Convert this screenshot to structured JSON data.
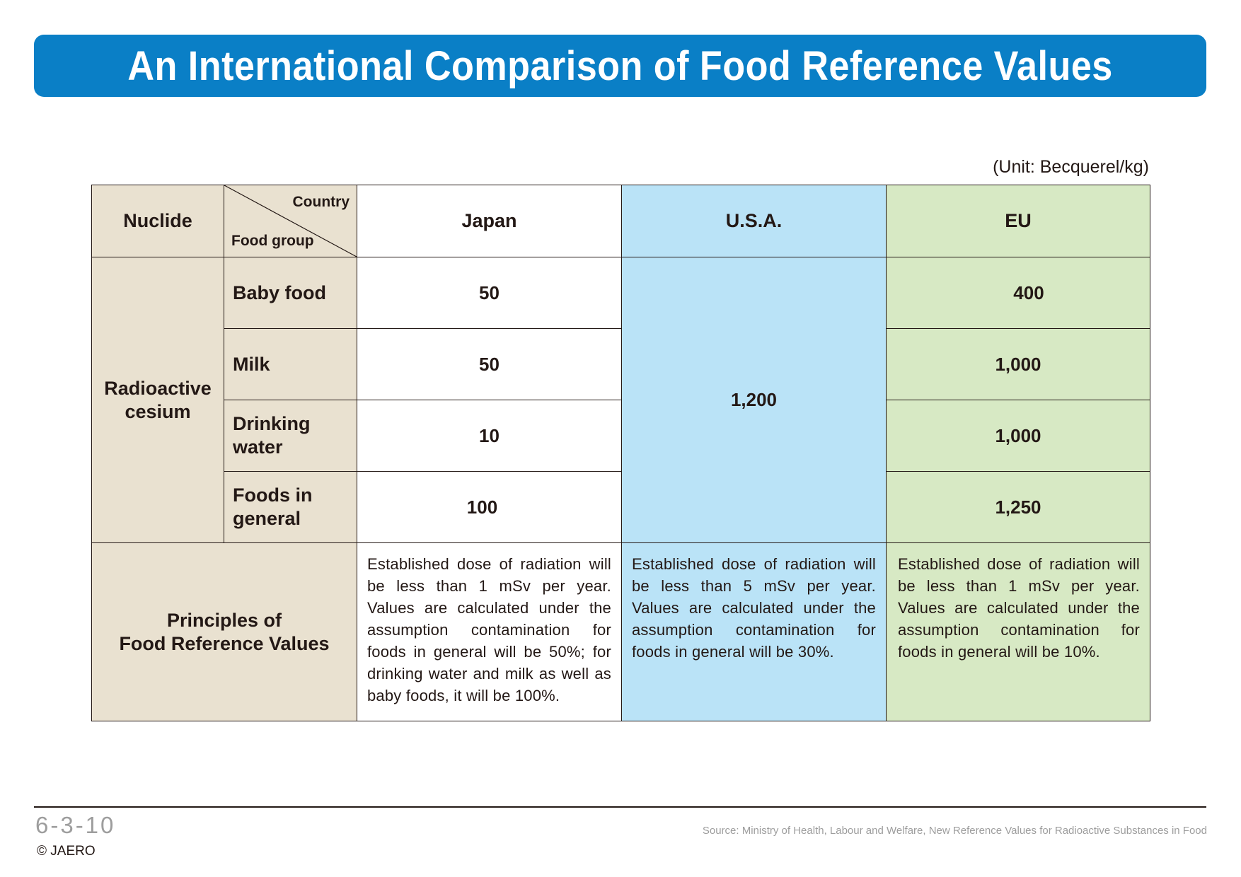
{
  "title": "An International Comparison of Food Reference Values",
  "unit": "(Unit: Becquerel/kg)",
  "table": {
    "header": {
      "nuclide": "Nuclide",
      "country": "Country",
      "food_group": "Food group",
      "countries": [
        "Japan",
        "U.S.A.",
        "EU"
      ]
    },
    "nuclide_name": "Radioactive\ncesium",
    "rows": [
      {
        "food": "Baby food",
        "japan": "50",
        "eu": "400"
      },
      {
        "food": "Milk",
        "japan": "50",
        "eu": "1,000"
      },
      {
        "food": "Drinking\nwater",
        "japan": "10",
        "eu": "1,000"
      },
      {
        "food": "Foods in\ngeneral",
        "japan": "100",
        "eu": "1,250"
      }
    ],
    "usa_value": "1,200",
    "principles_label": "Principles of\nFood Reference Values",
    "principles": {
      "japan": "Established dose of radiation will be less than 1 mSv per year. Values are calculated under the assumption contamination for foods in general will be 50%; for drinking water and milk as well as baby foods, it will be 100%.",
      "usa": "Established dose of radiation will be less than 5 mSv per year. Values are calculated under the assumption contamination for foods in general will be 30%.",
      "eu": "Established dose of radiation will be less than 1 mSv per year. Values are calculated under the assumption contamination for foods in general will be 10%."
    }
  },
  "footer": {
    "page_number": "6-3-10",
    "copyright": "© JAERO",
    "source": "Source: Ministry of Health, Labour and Welfare, New Reference Values for Radioactive Substances in Food"
  },
  "colors": {
    "title_bar": "#0a7fc6",
    "beige": "#e9e1d0",
    "usa_blue": "#bae3f7",
    "eu_green": "#d7e9c4"
  }
}
